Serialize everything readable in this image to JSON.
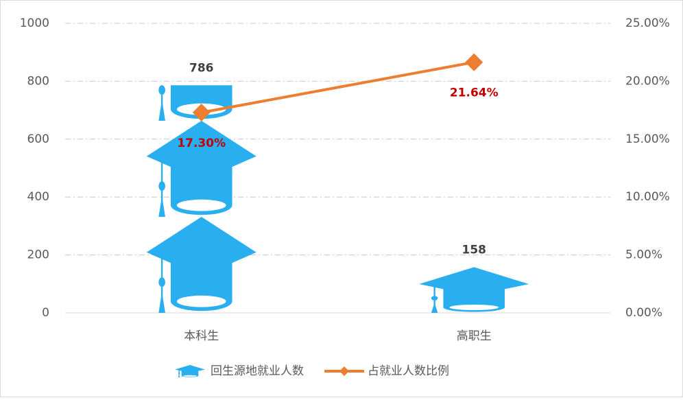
{
  "chart_data": {
    "type": "bar-line",
    "categories": [
      "本科生",
      "高职生"
    ],
    "series": [
      {
        "name": "回生源地就业人数",
        "type": "bar",
        "color": "#29AEEF",
        "values": [
          786,
          158
        ]
      },
      {
        "name": "占就业人数比例",
        "type": "line",
        "axis": "y2",
        "color": "#ED7D31",
        "values": [
          17.3,
          21.64
        ],
        "value_labels": [
          "17.30%",
          "21.64%"
        ]
      }
    ],
    "ylim": [
      0,
      1000
    ],
    "yticks": [
      0,
      200,
      400,
      600,
      800,
      1000
    ],
    "y2lim": [
      0,
      25
    ],
    "y2ticks": [
      {
        "value": 0,
        "label": "0.00%"
      },
      {
        "value": 5,
        "label": "5.00%"
      },
      {
        "value": 10,
        "label": "10.00%"
      },
      {
        "value": 15,
        "label": "15.00%"
      },
      {
        "value": 20,
        "label": "20.00%"
      },
      {
        "value": 25,
        "label": "25.00%"
      }
    ],
    "grid": true,
    "legend": "bottom"
  }
}
